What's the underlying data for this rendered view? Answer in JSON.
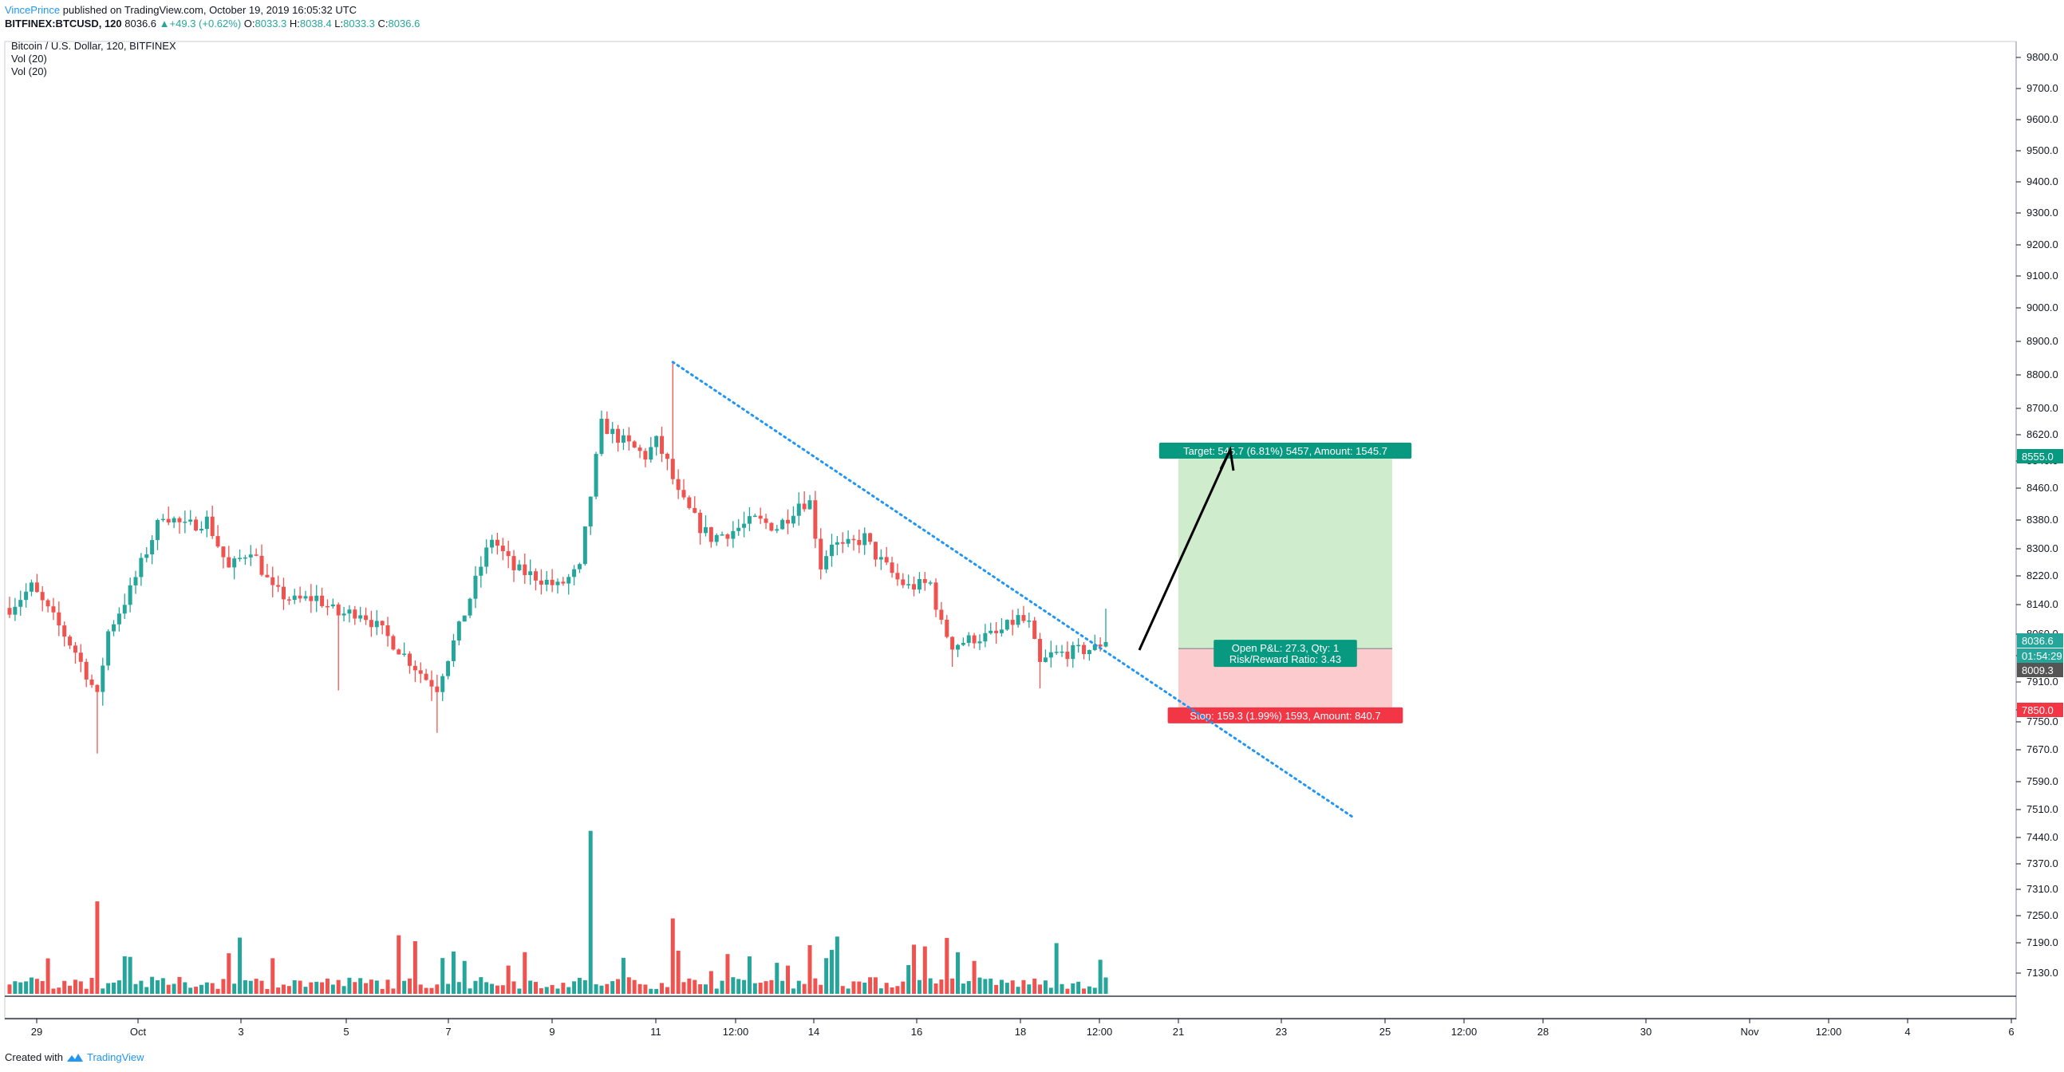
{
  "header": {
    "author": "VincePrince",
    "published": " published on TradingView.com, October 19, 2019 16:05:32 UTC",
    "symbol": "BITFINEX:BTCUSD, 120",
    "last": "8036.6",
    "change": "+49.3 (+0.62%)",
    "o_label": "O:",
    "o": "8033.3",
    "h_label": "H:",
    "h": "8038.4",
    "l_label": "L:",
    "l": "8033.3",
    "c_label": "C:",
    "c": "8036.6"
  },
  "legend": {
    "title": "Bitcoin / U.S. Dollar, 120, BITFINEX",
    "vol1": "Vol (20)",
    "vol2": "Vol (20)"
  },
  "footer": {
    "created": "Created with",
    "brand": "TradingView"
  },
  "colors": {
    "up": "#26a69a",
    "down": "#ef5350",
    "trend": "#2196f3",
    "target": "#089981",
    "stop": "#f23645"
  },
  "chart_data": {
    "type": "candlestick",
    "symbol": "BITFINEX:BTCUSD",
    "interval": "120",
    "y_axis": {
      "ticks": [
        "9800.0",
        "9700.0",
        "9600.0",
        "9500.0",
        "9400.0",
        "9300.0",
        "9200.0",
        "9100.0",
        "9000.0",
        "8900.0",
        "8800.0",
        "8700.0",
        "8620.0",
        "8540.0",
        "8460.0",
        "8380.0",
        "8300.0",
        "8220.0",
        "8140.0",
        "8060.0",
        "7990.0",
        "7910.0",
        "7830.0",
        "7750.0",
        "7670.0",
        "7590.0",
        "7510.0",
        "7440.0",
        "7370.0",
        "7310.0",
        "7250.0",
        "7190.0",
        "7130.0"
      ],
      "labels": [
        {
          "text": "8555.0",
          "value": 8555.0,
          "color": "#089981"
        },
        {
          "text": "8036.6",
          "value": 8036.6,
          "color": "#26a69a"
        },
        {
          "text": "01:54:29",
          "value": 8003.0,
          "color": "#26a69a"
        },
        {
          "text": "8009.3",
          "value": 7970.0,
          "color": "#555555"
        },
        {
          "text": "7850.0",
          "value": 7850.0,
          "color": "#f23645"
        }
      ]
    },
    "x_axis": {
      "ticks": [
        "29",
        "Oct",
        "3",
        "5",
        "7",
        "9",
        "11",
        "12:00",
        "14",
        "16",
        "18",
        "12:00",
        "21",
        "23",
        "25",
        "12:00",
        "28",
        "30",
        "Nov",
        "12:00",
        "4",
        "6"
      ]
    },
    "price_key_points": [
      [
        0,
        8130
      ],
      [
        4,
        8190
      ],
      [
        8,
        8100
      ],
      [
        12,
        8000
      ],
      [
        16,
        7870
      ],
      [
        18,
        8060
      ],
      [
        22,
        8180
      ],
      [
        26,
        8330
      ],
      [
        28,
        8400
      ],
      [
        32,
        8360
      ],
      [
        36,
        8380
      ],
      [
        40,
        8240
      ],
      [
        44,
        8300
      ],
      [
        48,
        8180
      ],
      [
        52,
        8150
      ],
      [
        56,
        8160
      ],
      [
        60,
        8110
      ],
      [
        64,
        8120
      ],
      [
        68,
        8060
      ],
      [
        72,
        7990
      ],
      [
        76,
        7920
      ],
      [
        78,
        7900
      ],
      [
        82,
        8070
      ],
      [
        86,
        8250
      ],
      [
        88,
        8330
      ],
      [
        92,
        8240
      ],
      [
        96,
        8220
      ],
      [
        100,
        8190
      ],
      [
        104,
        8240
      ],
      [
        106,
        8450
      ],
      [
        108,
        8650
      ],
      [
        112,
        8600
      ],
      [
        116,
        8560
      ],
      [
        118,
        8600
      ],
      [
        120,
        8540
      ],
      [
        122,
        8450
      ],
      [
        126,
        8360
      ],
      [
        128,
        8330
      ],
      [
        132,
        8350
      ],
      [
        136,
        8380
      ],
      [
        140,
        8360
      ],
      [
        142,
        8390
      ],
      [
        144,
        8430
      ],
      [
        146,
        8430
      ],
      [
        148,
        8250
      ],
      [
        150,
        8320
      ],
      [
        152,
        8300
      ],
      [
        156,
        8330
      ],
      [
        158,
        8280
      ],
      [
        162,
        8210
      ],
      [
        164,
        8190
      ],
      [
        168,
        8200
      ],
      [
        170,
        8080
      ],
      [
        172,
        8020
      ],
      [
        176,
        8040
      ],
      [
        180,
        8050
      ],
      [
        184,
        8100
      ],
      [
        186,
        8080
      ],
      [
        188,
        7960
      ],
      [
        190,
        7990
      ],
      [
        194,
        8000
      ],
      [
        198,
        8010
      ],
      [
        200,
        8036
      ]
    ],
    "trendline": {
      "style": "dotted",
      "from": {
        "bar": 121,
        "price": 8838
      },
      "to": {
        "bar": 245,
        "price": 7570
      }
    },
    "position": {
      "side": "long",
      "entry": 8009.3,
      "target": 8555.0,
      "stop": 7850.0,
      "target_label": "Target: 545.7 (6.81%) 5457, Amount: 1545.7",
      "stop_label": "Stop: 159.3 (1.99%) 1593, Amount: 840.7",
      "pnl_label": "Open P&L: 27.3, Qty: 1",
      "rr_label": "Risk/Reward Ratio: 3.43"
    },
    "volume": {
      "name": "Vol (20)",
      "spikes": [
        [
          16,
          "down",
          0.38
        ],
        [
          106,
          "up",
          0.67
        ],
        [
          121,
          "down",
          0.31
        ],
        [
          146,
          "down",
          0.2
        ],
        [
          171,
          "down",
          0.23
        ],
        [
          199,
          "up",
          0.14
        ]
      ]
    },
    "grid": false
  }
}
